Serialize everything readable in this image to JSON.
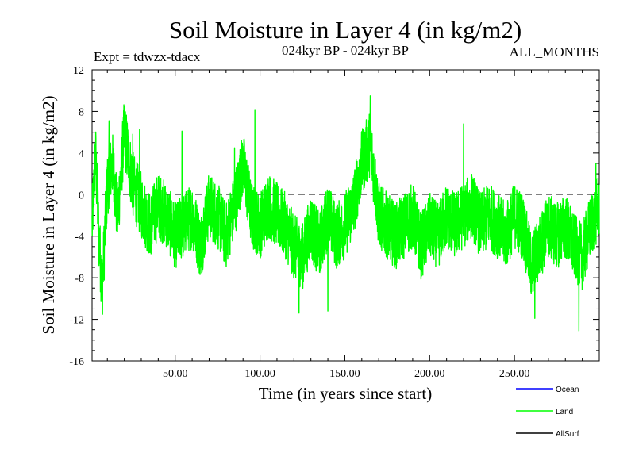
{
  "header": {
    "title": "Soil Moisture in Layer 4 (in kg/m2)",
    "subtitle": "024kyr BP - 024kyr BP",
    "left_label": "Expt = tdwzx-tdacx",
    "right_label": "ALL_MONTHS"
  },
  "legend": {
    "items": [
      {
        "label": "Ocean",
        "color": "#0000ff"
      },
      {
        "label": "Land",
        "color": "#00ff00"
      },
      {
        "label": "AllSurf",
        "color": "#000000"
      }
    ]
  },
  "chart_data": {
    "type": "line",
    "title": "Soil Moisture in Layer 4 (in kg/m2)",
    "xlabel": "Time (in years since start)",
    "ylabel": "Soil Moisture in Layer 4 (in kg/m2)",
    "xlim": [
      1,
      300
    ],
    "ylim": [
      -16,
      12
    ],
    "x_ticks": [
      50,
      100,
      150,
      200,
      250
    ],
    "x_tick_labels": [
      "50.00",
      "100.00",
      "150.00",
      "200.00",
      "250.00"
    ],
    "y_ticks": [
      -16,
      -12,
      -8,
      -4,
      0,
      4,
      8,
      12
    ],
    "y_tick_labels": [
      "-16",
      "-12",
      "-8",
      "-4",
      "0",
      "4",
      "8",
      "12"
    ],
    "zero_line": {
      "y": 0,
      "style": "dashed"
    },
    "series_color": "#00ff00",
    "anchors_x": [
      1,
      3,
      5,
      7,
      10,
      13,
      16,
      20,
      25,
      30,
      35,
      40,
      45,
      50,
      55,
      60,
      65,
      70,
      75,
      80,
      85,
      90,
      95,
      100,
      105,
      110,
      115,
      120,
      125,
      130,
      135,
      140,
      145,
      150,
      155,
      160,
      165,
      170,
      175,
      180,
      185,
      190,
      195,
      200,
      205,
      210,
      215,
      220,
      225,
      230,
      235,
      240,
      245,
      250,
      255,
      260,
      265,
      270,
      275,
      280,
      285,
      290,
      295,
      300
    ],
    "anchors_y": [
      -3,
      4,
      -4,
      -9,
      1,
      3,
      -2,
      6,
      1,
      -1,
      -3,
      -1,
      -2,
      -4,
      -3,
      -2,
      -5,
      -1,
      -2,
      -4,
      -1,
      3,
      -2,
      -3,
      -1,
      -2,
      -3,
      -5,
      -6,
      -3,
      -5,
      -2,
      -4,
      -3,
      -1,
      3,
      5,
      -2,
      -3,
      -4,
      -3,
      -2,
      -5,
      -3,
      -4,
      -2,
      -3,
      -2,
      -1,
      -3,
      -2,
      -3,
      -4,
      -2,
      -3,
      -7,
      -5,
      -3,
      -4,
      -3,
      -5,
      -6,
      -3,
      -1
    ],
    "noise_amplitude": 3.2,
    "extremes": [
      {
        "x": 11,
        "y": 7.1
      },
      {
        "x": 25,
        "y": 5.8
      },
      {
        "x": 29,
        "y": 6.3
      },
      {
        "x": 54,
        "y": 6.1
      },
      {
        "x": 85,
        "y": 4.5
      },
      {
        "x": 97,
        "y": 8.1
      },
      {
        "x": 123,
        "y": -11.4
      },
      {
        "x": 140,
        "y": -11.2
      },
      {
        "x": 165,
        "y": 9.5
      },
      {
        "x": 220,
        "y": 6.8
      },
      {
        "x": 262,
        "y": -11.9
      },
      {
        "x": 288,
        "y": -13.1
      },
      {
        "x": 298,
        "y": 3
      }
    ]
  }
}
